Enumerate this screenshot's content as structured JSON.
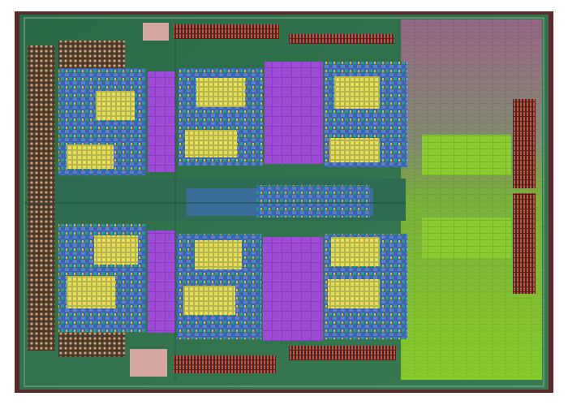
{
  "image": {
    "subject": "processor-die-micrograph",
    "layout": {
      "cores_top_row": 3,
      "cores_bottom_row": 3,
      "cache_blocks_right": true
    },
    "colors": {
      "background": "#ffffff",
      "substrate": "#2f6f4a",
      "frame": "#5a2b28",
      "core_blue": "#3d63b0",
      "cache_violet": "#8a38c8",
      "l3_green": "#86c928",
      "l3_purple": "#9a2fb0",
      "io_tan": "#c9a07a"
    },
    "watermark": {
      "text": "",
      "is_logo": true
    }
  }
}
